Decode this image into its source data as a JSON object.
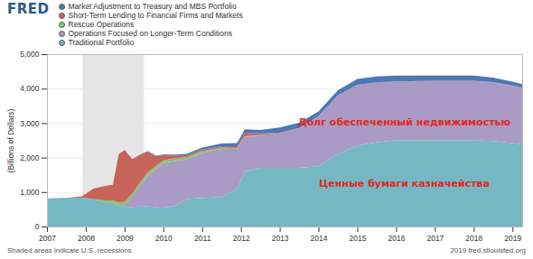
{
  "chart_data": {
    "type": "area",
    "stacked": true,
    "logo": "FRED",
    "y_label": "(Billions of Dollars)",
    "footer_left": "Shaded areas indicate U.S. recessions",
    "footer_right": "2019 fred.stlouisfed.org",
    "legend": "top-left",
    "grid": true,
    "x": [
      2007,
      2007.5,
      2007.9,
      2008.2,
      2008.5,
      2008.7,
      2008.85,
      2009,
      2009.2,
      2009.4,
      2009.6,
      2009.8,
      2010,
      2010.3,
      2010.6,
      2011,
      2011.5,
      2011.9,
      2012.1,
      2012.5,
      2013,
      2013.5,
      2014,
      2014.5,
      2015,
      2015.5,
      2016,
      2017,
      2018,
      2018.5,
      2019,
      2019.25
    ],
    "xlim": [
      2007,
      2019.25
    ],
    "xticks": [
      2007,
      2008,
      2009,
      2010,
      2011,
      2012,
      2013,
      2014,
      2015,
      2016,
      2017,
      2018,
      2019
    ],
    "ylim": [
      0,
      5000
    ],
    "yticks": [
      0,
      {
        "value": 1000,
        "label": "1,000"
      },
      {
        "value": 2000,
        "label": "2,000"
      },
      {
        "value": 3000,
        "label": "3,000"
      },
      {
        "value": 4000,
        "label": "4,000"
      },
      {
        "value": 5000,
        "label": "5,000"
      }
    ],
    "recessions": [
      {
        "start": 2007.917,
        "end": 2009.5
      }
    ],
    "series": [
      {
        "name": "Traditional Portfolio",
        "color": "#76b7c4",
        "values": [
          820,
          830,
          840,
          780,
          700,
          680,
          600,
          560,
          560,
          580,
          580,
          560,
          540,
          600,
          800,
          830,
          850,
          1100,
          1600,
          1700,
          1700,
          1700,
          1750,
          2100,
          2350,
          2450,
          2500,
          2500,
          2500,
          2480,
          2420,
          2380
        ]
      },
      {
        "name": "Operations Focused on Longer-Term Conditions",
        "color": "#a99ac6",
        "values": [
          0,
          0,
          0,
          0,
          0,
          0,
          0,
          50,
          300,
          600,
          900,
          1100,
          1300,
          1300,
          1150,
          1300,
          1400,
          1150,
          1000,
          950,
          1000,
          1150,
          1450,
          1700,
          1750,
          1720,
          1700,
          1720,
          1720,
          1700,
          1660,
          1640
        ]
      },
      {
        "name": "Rescue Operations",
        "color": "#8dc26f",
        "values": [
          0,
          0,
          0,
          20,
          60,
          80,
          100,
          110,
          100,
          100,
          100,
          90,
          80,
          80,
          60,
          60,
          40,
          30,
          20,
          10,
          0,
          0,
          0,
          0,
          0,
          0,
          0,
          0,
          0,
          0,
          0,
          0
        ]
      },
      {
        "name": "Short-Term Lending to Financial Firms and Markets",
        "color": "#c8635a",
        "values": [
          0,
          0,
          40,
          300,
          420,
          450,
          1400,
          1500,
          1000,
          800,
          600,
          300,
          150,
          80,
          60,
          40,
          40,
          50,
          100,
          40,
          20,
          10,
          10,
          10,
          10,
          10,
          10,
          10,
          10,
          10,
          10,
          10
        ]
      },
      {
        "name": "Market Adjustment to Treasury and MBS Portfolio",
        "color": "#4a78b8",
        "values": [
          0,
          0,
          0,
          0,
          0,
          0,
          0,
          0,
          0,
          10,
          10,
          10,
          20,
          30,
          40,
          60,
          80,
          90,
          100,
          100,
          150,
          150,
          130,
          140,
          170,
          170,
          170,
          150,
          150,
          130,
          110,
          100
        ]
      }
    ],
    "annotations": [
      {
        "text": "Долг обеспеченный недвижимостью",
        "x": 2016.2,
        "y": 3050
      },
      {
        "text": "Ценные бумаги казначейства",
        "x": 2016.2,
        "y": 1250
      }
    ]
  }
}
